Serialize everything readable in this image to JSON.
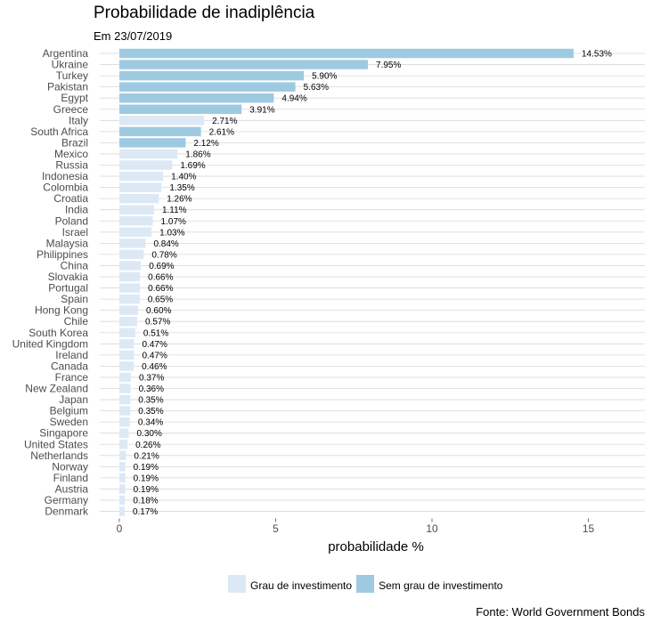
{
  "title": "Probabilidade de inadiplência",
  "subtitle": "Em 23/07/2019",
  "caption": "Fonte: World Government Bonds",
  "colors": {
    "investment_grade": "#dce9f5",
    "non_investment_grade": "#9ecae1",
    "gridline": "#d9d9d9"
  },
  "chart_data": {
    "type": "bar",
    "orientation": "horizontal",
    "title": "Probabilidade de inadiplência",
    "subtitle": "Em 23/07/2019",
    "xlabel": "probabilidade %",
    "ylabel": "",
    "xlim": [
      0,
      17
    ],
    "xticks": [
      0,
      5,
      10,
      15
    ],
    "legend_position": "bottom",
    "legend": [
      {
        "key": "investment_grade",
        "label": "Grau de investimento"
      },
      {
        "key": "non_investment_grade",
        "label": "Sem grau de investimento"
      }
    ],
    "bars": [
      {
        "category": "Argentina",
        "value": 14.53,
        "label": "14.53%",
        "group": "non_investment_grade"
      },
      {
        "category": "Ukraine",
        "value": 7.95,
        "label": "7.95%",
        "group": "non_investment_grade"
      },
      {
        "category": "Turkey",
        "value": 5.9,
        "label": "5.90%",
        "group": "non_investment_grade"
      },
      {
        "category": "Pakistan",
        "value": 5.63,
        "label": "5.63%",
        "group": "non_investment_grade"
      },
      {
        "category": "Egypt",
        "value": 4.94,
        "label": "4.94%",
        "group": "non_investment_grade"
      },
      {
        "category": "Greece",
        "value": 3.91,
        "label": "3.91%",
        "group": "non_investment_grade"
      },
      {
        "category": "Italy",
        "value": 2.71,
        "label": "2.71%",
        "group": "investment_grade"
      },
      {
        "category": "South Africa",
        "value": 2.61,
        "label": "2.61%",
        "group": "non_investment_grade"
      },
      {
        "category": "Brazil",
        "value": 2.12,
        "label": "2.12%",
        "group": "non_investment_grade"
      },
      {
        "category": "Mexico",
        "value": 1.86,
        "label": "1.86%",
        "group": "investment_grade"
      },
      {
        "category": "Russia",
        "value": 1.69,
        "label": "1.69%",
        "group": "investment_grade"
      },
      {
        "category": "Indonesia",
        "value": 1.4,
        "label": "1.40%",
        "group": "investment_grade"
      },
      {
        "category": "Colombia",
        "value": 1.35,
        "label": "1.35%",
        "group": "investment_grade"
      },
      {
        "category": "Croatia",
        "value": 1.26,
        "label": "1.26%",
        "group": "investment_grade"
      },
      {
        "category": "India",
        "value": 1.11,
        "label": "1.11%",
        "group": "investment_grade"
      },
      {
        "category": "Poland",
        "value": 1.07,
        "label": "1.07%",
        "group": "investment_grade"
      },
      {
        "category": "Israel",
        "value": 1.03,
        "label": "1.03%",
        "group": "investment_grade"
      },
      {
        "category": "Malaysia",
        "value": 0.84,
        "label": "0.84%",
        "group": "investment_grade"
      },
      {
        "category": "Philippines",
        "value": 0.78,
        "label": "0.78%",
        "group": "investment_grade"
      },
      {
        "category": "China",
        "value": 0.69,
        "label": "0.69%",
        "group": "investment_grade"
      },
      {
        "category": "Slovakia",
        "value": 0.66,
        "label": "0.66%",
        "group": "investment_grade"
      },
      {
        "category": "Portugal",
        "value": 0.66,
        "label": "0.66%",
        "group": "investment_grade"
      },
      {
        "category": "Spain",
        "value": 0.65,
        "label": "0.65%",
        "group": "investment_grade"
      },
      {
        "category": "Hong Kong",
        "value": 0.6,
        "label": "0.60%",
        "group": "investment_grade"
      },
      {
        "category": "Chile",
        "value": 0.57,
        "label": "0.57%",
        "group": "investment_grade"
      },
      {
        "category": "South Korea",
        "value": 0.51,
        "label": "0.51%",
        "group": "investment_grade"
      },
      {
        "category": "United Kingdom",
        "value": 0.47,
        "label": "0.47%",
        "group": "investment_grade"
      },
      {
        "category": "Ireland",
        "value": 0.47,
        "label": "0.47%",
        "group": "investment_grade"
      },
      {
        "category": "Canada",
        "value": 0.46,
        "label": "0.46%",
        "group": "investment_grade"
      },
      {
        "category": "France",
        "value": 0.37,
        "label": "0.37%",
        "group": "investment_grade"
      },
      {
        "category": "New Zealand",
        "value": 0.36,
        "label": "0.36%",
        "group": "investment_grade"
      },
      {
        "category": "Japan",
        "value": 0.35,
        "label": "0.35%",
        "group": "investment_grade"
      },
      {
        "category": "Belgium",
        "value": 0.35,
        "label": "0.35%",
        "group": "investment_grade"
      },
      {
        "category": "Sweden",
        "value": 0.34,
        "label": "0.34%",
        "group": "investment_grade"
      },
      {
        "category": "Singapore",
        "value": 0.3,
        "label": "0.30%",
        "group": "investment_grade"
      },
      {
        "category": "United States",
        "value": 0.26,
        "label": "0.26%",
        "group": "investment_grade"
      },
      {
        "category": "Netherlands",
        "value": 0.21,
        "label": "0.21%",
        "group": "investment_grade"
      },
      {
        "category": "Norway",
        "value": 0.19,
        "label": "0.19%",
        "group": "investment_grade"
      },
      {
        "category": "Finland",
        "value": 0.19,
        "label": "0.19%",
        "group": "investment_grade"
      },
      {
        "category": "Austria",
        "value": 0.19,
        "label": "0.19%",
        "group": "investment_grade"
      },
      {
        "category": "Germany",
        "value": 0.18,
        "label": "0.18%",
        "group": "investment_grade"
      },
      {
        "category": "Denmark",
        "value": 0.17,
        "label": "0.17%",
        "group": "investment_grade"
      }
    ]
  }
}
